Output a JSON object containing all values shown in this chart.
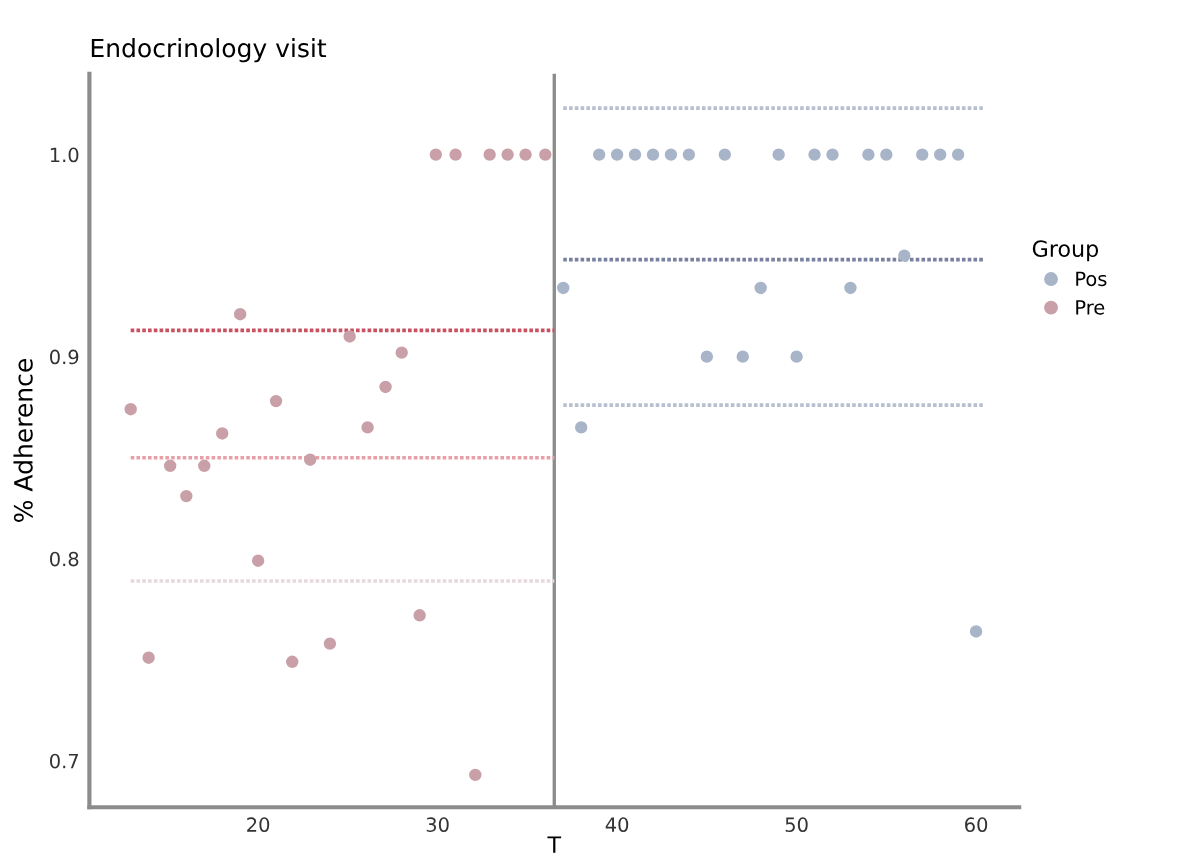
{
  "chart_data": {
    "type": "scatter",
    "title": "Endocrinology visit",
    "xlabel": "T",
    "ylabel": "% Adherence",
    "legend_title": "Group",
    "legend": "right",
    "grid": false,
    "xlim": [
      10.6,
      62.4
    ],
    "ylim": [
      0.677,
      1.04
    ],
    "xticks": [
      20,
      30,
      40,
      50,
      60
    ],
    "yticks": [
      0.7,
      0.8,
      0.9,
      {
        "value": 1.0,
        "label": "1.0"
      }
    ],
    "ref_lines": [
      {
        "axis": "x",
        "value": 36.5,
        "color": "#8c8c8c"
      }
    ],
    "series": [
      {
        "name": "Pos",
        "marker": "circle",
        "color": "#a8b4c8",
        "x": [
          39,
          40,
          41,
          42,
          43,
          44,
          46,
          49,
          51,
          52,
          54,
          55,
          57,
          58,
          59,
          37,
          48,
          53,
          45,
          47,
          50,
          38,
          60,
          56
        ],
        "values": [
          1.0,
          1.0,
          1.0,
          1.0,
          1.0,
          1.0,
          1.0,
          1.0,
          1.0,
          1.0,
          1.0,
          1.0,
          1.0,
          1.0,
          1.0,
          0.934,
          0.934,
          0.934,
          0.9,
          0.9,
          0.9,
          0.865,
          0.764,
          0.95
        ]
      },
      {
        "name": "Pre",
        "marker": "circle",
        "color": "#c9a0a8",
        "x": [
          12.9,
          13.9,
          15.1,
          16,
          17,
          18,
          19,
          20,
          21,
          21.9,
          22.9,
          24,
          25.1,
          26.1,
          27.1,
          28,
          29,
          32.1,
          29.9,
          31,
          32.9,
          33.9,
          34.9,
          36
        ],
        "values": [
          0.874,
          0.751,
          0.846,
          0.831,
          0.846,
          0.862,
          0.921,
          0.799,
          0.878,
          0.749,
          0.849,
          0.758,
          0.91,
          0.865,
          0.885,
          0.902,
          0.772,
          0.693,
          1.0,
          1.0,
          1.0,
          1.0,
          1.0,
          1.0
        ]
      },
      {
        "type": "line",
        "line_style": "dotted",
        "color": "#c85060",
        "x": [
          12.9,
          36.5
        ],
        "values": [
          0.913,
          0.913
        ]
      },
      {
        "type": "line",
        "line_style": "dotted",
        "color": "#e8a0a8",
        "x": [
          12.9,
          36.5
        ],
        "values": [
          0.85,
          0.85
        ]
      },
      {
        "type": "line",
        "line_style": "dotted",
        "color": "#e6d8dc",
        "x": [
          12.9,
          36.5
        ],
        "values": [
          0.789,
          0.789
        ]
      },
      {
        "type": "line",
        "line_style": "dotted",
        "color": "#b8c0d0",
        "x": [
          37,
          60.4
        ],
        "values": [
          1.023,
          1.023
        ]
      },
      {
        "type": "line",
        "line_style": "dotted",
        "color": "#7880a0",
        "x": [
          37,
          60.4
        ],
        "values": [
          0.948,
          0.948
        ]
      },
      {
        "type": "line",
        "line_style": "dotted",
        "color": "#b8c0d0",
        "x": [
          37,
          60.4
        ],
        "values": [
          0.876,
          0.876
        ]
      }
    ]
  }
}
